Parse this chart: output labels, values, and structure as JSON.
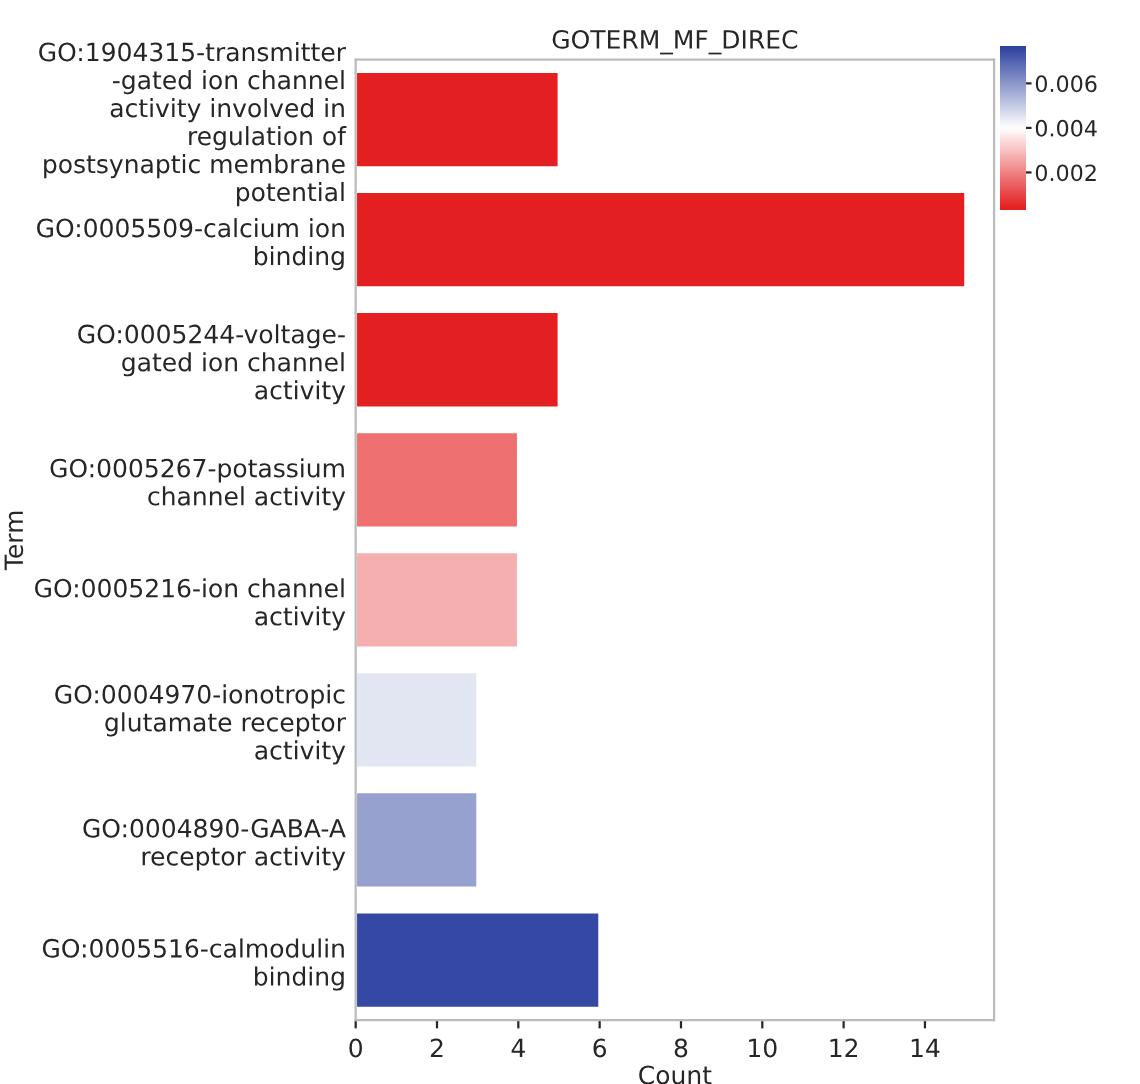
{
  "chart_data": {
    "type": "bar",
    "orientation": "horizontal",
    "title": "GOTERM_MF_DIREC",
    "xlabel": "Count",
    "ylabel": "Term",
    "categories": [
      "GO:1904315-transmitter\n-gated ion channel\nactivity involved in\nregulation of\npostsynaptic membrane\npotential",
      "GO:0005509-calcium ion\nbinding",
      "GO:0005244-voltage-\ngated ion channel\nactivity",
      "GO:0005267-potassium\nchannel activity",
      "GO:0005216-ion channel\nactivity",
      "GO:0004970-ionotropic\nglutamate receptor\nactivity",
      "GO:0004890-GABA-A\nreceptor activity",
      "GO:0005516-calmodulin\nbinding"
    ],
    "values": [
      5,
      15,
      5,
      4,
      4,
      3,
      3,
      6
    ],
    "cvalues": [
      0.0004,
      0.0004,
      0.0004,
      0.0017,
      0.0027,
      0.0045,
      0.0058,
      0.0075
    ],
    "clim": [
      0.0003,
      0.0077
    ],
    "cticks": [
      0.002,
      0.004,
      0.006
    ],
    "xlim": [
      0,
      15.7
    ],
    "xticks": [
      0,
      2,
      4,
      6,
      8,
      10,
      12,
      14
    ],
    "grid": false,
    "legend": false
  }
}
